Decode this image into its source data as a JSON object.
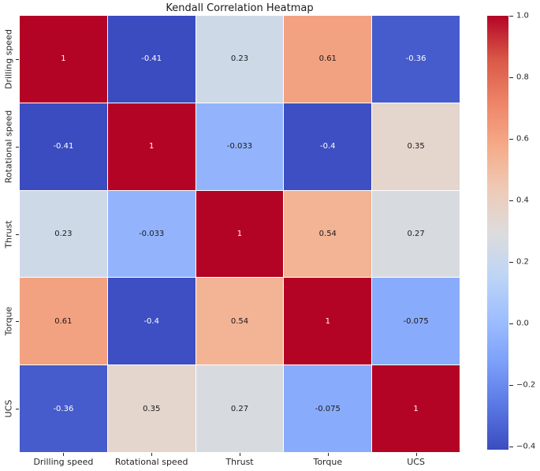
{
  "chart_data": {
    "type": "heatmap",
    "title": "Kendall Correlation Heatmap",
    "categories": [
      "Drilling speed",
      "Rotational speed",
      "Thrust",
      "Torque",
      "UCS"
    ],
    "matrix": [
      [
        1,
        -0.41,
        0.23,
        0.61,
        -0.36
      ],
      [
        -0.41,
        1,
        -0.033,
        -0.4,
        0.35
      ],
      [
        0.23,
        -0.033,
        1,
        0.54,
        0.27
      ],
      [
        0.61,
        -0.4,
        0.54,
        1,
        -0.075
      ],
      [
        -0.36,
        0.35,
        0.27,
        -0.075,
        1
      ]
    ],
    "cell_labels": [
      [
        "1",
        "-0.41",
        "0.23",
        "0.61",
        "-0.36"
      ],
      [
        "-0.41",
        "1",
        "-0.033",
        "-0.4",
        "0.35"
      ],
      [
        "0.23",
        "-0.033",
        "1",
        "0.54",
        "0.27"
      ],
      [
        "0.61",
        "-0.4",
        "0.54",
        "1",
        "-0.075"
      ],
      [
        "-0.36",
        "0.35",
        "0.27",
        "-0.075",
        "1"
      ]
    ],
    "vmin": -0.41,
    "vmax": 1.0,
    "colormap": "coolwarm",
    "colormap_stops": [
      "#3b4cc0",
      "#5977e3",
      "#7c9ff9",
      "#9ebeff",
      "#bdd5f5",
      "#dddcdc",
      "#eecab6",
      "#f5ab89",
      "#ee8468",
      "#d95847",
      "#b40426"
    ],
    "colorbar_ticks": [
      {
        "value": 1.0,
        "label": "1.0"
      },
      {
        "value": 0.8,
        "label": "0.8"
      },
      {
        "value": 0.6,
        "label": "0.6"
      },
      {
        "value": 0.4,
        "label": "0.4"
      },
      {
        "value": 0.2,
        "label": "0.2"
      },
      {
        "value": 0.0,
        "label": "0.0"
      },
      {
        "value": -0.2,
        "label": "−0.2"
      },
      {
        "value": -0.4,
        "label": "−0.4"
      }
    ],
    "legend_position": "right",
    "grid_line_color": "#ffffff",
    "axis_text_color": "#262626",
    "annotation_text_dark": "#1a1a1a",
    "annotation_text_light": "#ffffff"
  }
}
